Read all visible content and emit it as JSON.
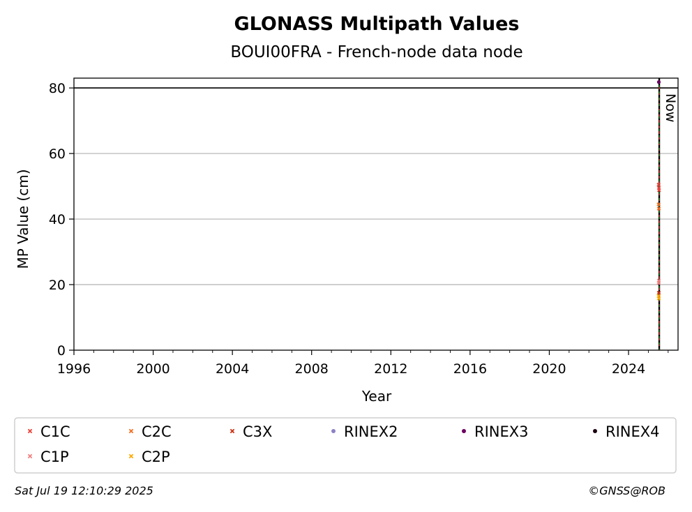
{
  "chart_data": {
    "type": "scatter",
    "title": "GLONASS Multipath Values",
    "subtitle": "BOUI00FRA - French-node data node",
    "xlabel": "Year",
    "ylabel": "MP Value (cm)",
    "xlim": [
      1996,
      2026.5
    ],
    "ylim": [
      0,
      83
    ],
    "x_ticks": [
      "1996",
      "2000",
      "2004",
      "2008",
      "2012",
      "2016",
      "2020",
      "2024"
    ],
    "y_ticks": [
      "0",
      "20",
      "40",
      "60",
      "80"
    ],
    "grid": "horizontal",
    "threshold_line": 80,
    "now_line": {
      "label": "Now",
      "x": 2025.55
    },
    "legend_position": "bottom",
    "series": [
      {
        "name": "C1C",
        "marker": "x",
        "color": "#e8433a",
        "x": [
          2025.52,
          2025.53,
          2025.54
        ],
        "y": [
          50.5,
          49.5,
          48.8
        ]
      },
      {
        "name": "C2C",
        "marker": "x",
        "color": "#f07020",
        "x": [
          2025.52,
          2025.53
        ],
        "y": [
          44.5,
          43.2
        ]
      },
      {
        "name": "C3X",
        "marker": "x",
        "color": "#c83010",
        "x": [
          2025.53
        ],
        "y": [
          17.5
        ]
      },
      {
        "name": "RINEX2",
        "marker": "dot",
        "color": "#8c82c4",
        "x": [],
        "y": []
      },
      {
        "name": "RINEX3",
        "marker": "dot",
        "color": "#6a0060",
        "x": [
          2025.53
        ],
        "y": [
          81.8
        ]
      },
      {
        "name": "RINEX4",
        "marker": "dot",
        "color": "#1a0010",
        "x": [],
        "y": []
      },
      {
        "name": "C1P",
        "marker": "x",
        "color": "#f08080",
        "x": [
          2025.52,
          2025.53
        ],
        "y": [
          20.5,
          21.2
        ]
      },
      {
        "name": "C2P",
        "marker": "x",
        "color": "#ffaa00",
        "x": [
          2025.52,
          2025.53
        ],
        "y": [
          16.5,
          15.8
        ]
      }
    ]
  },
  "footer": {
    "timestamp": "Sat Jul 19 12:10:29 2025",
    "credit": "©GNSS@ROB"
  }
}
